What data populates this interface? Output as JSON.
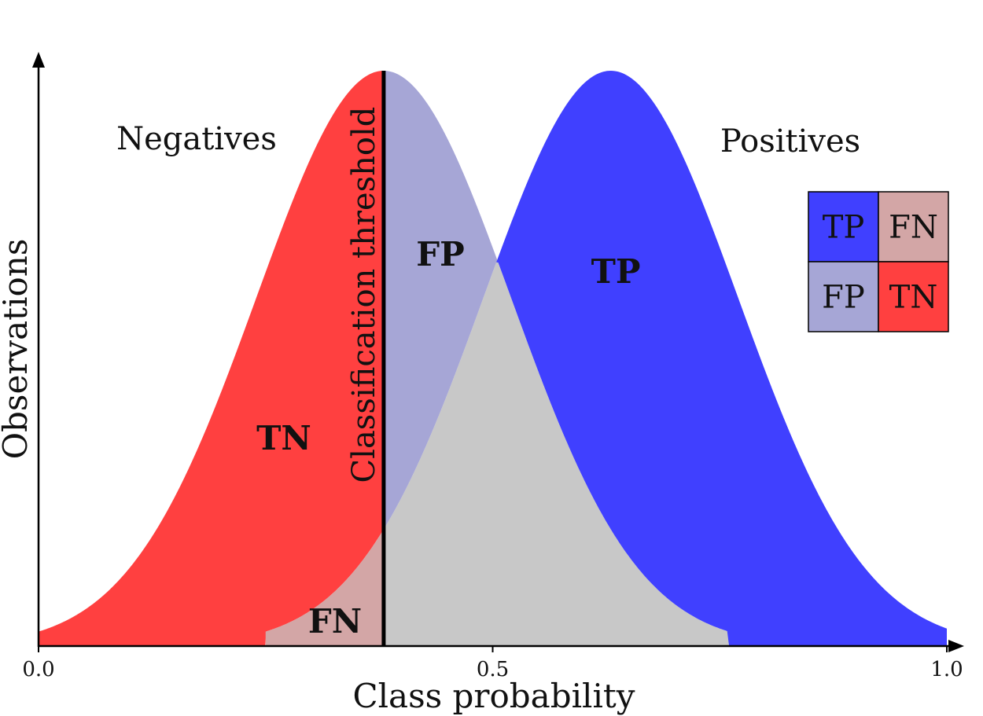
{
  "chart_data": {
    "type": "area",
    "xlabel": "Class probability",
    "ylabel": "Observations",
    "xlim": [
      0.0,
      1.0
    ],
    "x_ticks": [
      "0.0",
      "0.5",
      "1.0"
    ],
    "grid": false,
    "threshold": {
      "x": 0.38,
      "label": "Classification threshold"
    },
    "series": [
      {
        "name": "Negatives",
        "mean": 0.38,
        "std": 0.14,
        "x_range": [
          0.0,
          0.76
        ]
      },
      {
        "name": "Positives",
        "mean": 0.63,
        "std": 0.14,
        "x_range": [
          0.25,
          1.0
        ]
      }
    ],
    "region_labels": {
      "tn": "TN",
      "fp": "FP",
      "tp": "TP",
      "fn": "FN"
    },
    "legend": {
      "placement": "right",
      "cells": [
        {
          "label": "TP",
          "color": "#4040ff"
        },
        {
          "label": "FN",
          "color": "#d3a6a6"
        },
        {
          "label": "FP",
          "color": "#a6a6d6"
        },
        {
          "label": "TN",
          "color": "#ff4040"
        }
      ]
    },
    "colors": {
      "tn": "#ff4040",
      "tp": "#4040ff",
      "fp": "#a6a6d6",
      "fn": "#d3a6a6",
      "overlap": "#c8c8c8",
      "threshold": "#000000"
    }
  }
}
